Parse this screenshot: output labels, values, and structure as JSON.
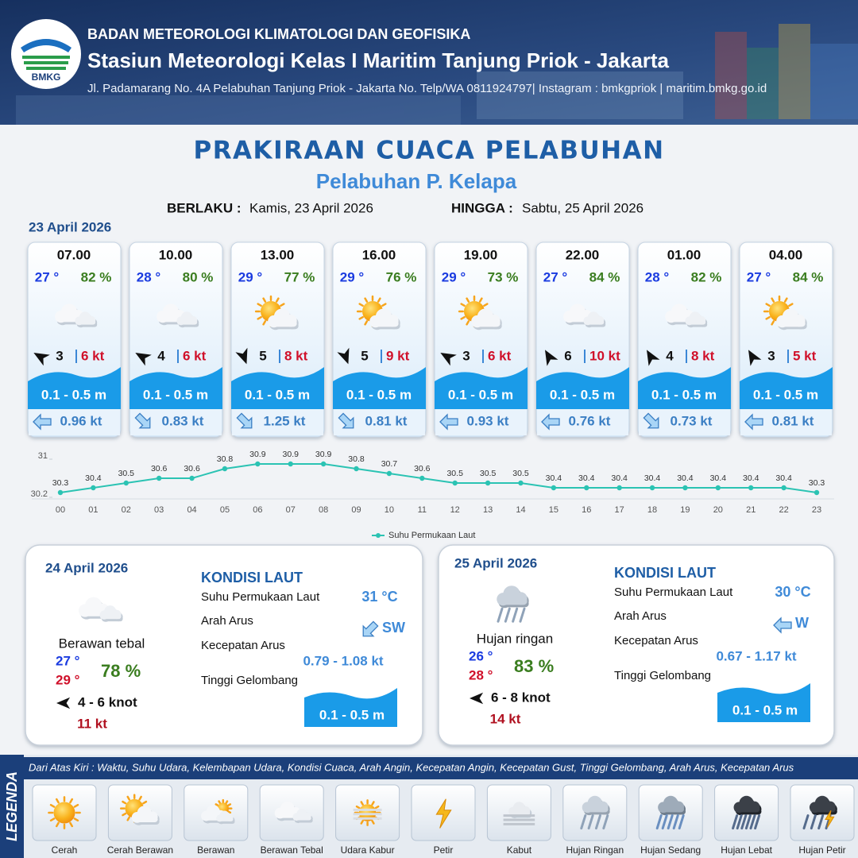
{
  "header": {
    "logo_text": "BMKG",
    "agency": "BADAN METEOROLOGI KLIMATOLOGI DAN GEOFISIKA",
    "station": "Stasiun Meteorologi Kelas I Maritim Tanjung Priok - Jakarta",
    "address": "Jl. Padamarang No. 4A Pelabuhan Tanjung Priok - Jakarta No. Telp/WA 0811924797| Instagram : bmkgpriok | maritim.bmkg.go.id"
  },
  "title": "PRAKIRAAN CUACA PELABUHAN",
  "subtitle": "Pelabuhan P. Kelapa",
  "validity": {
    "from_label": "BERLAKU :",
    "from": "Kamis, 23 April 2026",
    "to_label": "HINGGA :",
    "to": "Sabtu, 25 April 2026"
  },
  "today": {
    "date": "23 April 2026",
    "forecasts": [
      {
        "time": "07.00",
        "temperature": "27 °",
        "humidity": "82 %",
        "wind_speed": "3",
        "gust": "6 kt",
        "wave": "0.1 - 0.5 m",
        "current": "0.96 kt"
      },
      {
        "time": "10.00",
        "temperature": "28 °",
        "humidity": "80 %",
        "wind_speed": "4",
        "gust": "6 kt",
        "wave": "0.1 - 0.5 m",
        "current": "0.83 kt"
      },
      {
        "time": "13.00",
        "temperature": "29 °",
        "humidity": "77 %",
        "wind_speed": "5",
        "gust": "8 kt",
        "wave": "0.1 - 0.5 m",
        "current": "1.25 kt"
      },
      {
        "time": "16.00",
        "temperature": "29 °",
        "humidity": "76 %",
        "wind_speed": "5",
        "gust": "9 kt",
        "wave": "0.1 - 0.5 m",
        "current": "0.81 kt"
      },
      {
        "time": "19.00",
        "temperature": "29 °",
        "humidity": "73 %",
        "wind_speed": "3",
        "gust": "6 kt",
        "wave": "0.1 - 0.5 m",
        "current": "0.93 kt"
      },
      {
        "time": "22.00",
        "temperature": "27 °",
        "humidity": "84 %",
        "wind_speed": "6",
        "gust": "10 kt",
        "wave": "0.1 - 0.5 m",
        "current": "0.76 kt"
      },
      {
        "time": "01.00",
        "temperature": "28 °",
        "humidity": "82 %",
        "wind_speed": "4",
        "gust": "8 kt",
        "wave": "0.1 - 0.5 m",
        "current": "0.73 kt"
      },
      {
        "time": "04.00",
        "temperature": "27 °",
        "humidity": "84 %",
        "wind_speed": "3",
        "gust": "5 kt",
        "wave": "0.1 - 0.5 m",
        "current": "0.81 kt"
      }
    ]
  },
  "chart_data": {
    "type": "line",
    "categories": [
      "00",
      "01",
      "02",
      "03",
      "04",
      "05",
      "06",
      "07",
      "08",
      "09",
      "10",
      "11",
      "12",
      "13",
      "14",
      "15",
      "16",
      "17",
      "18",
      "19",
      "20",
      "21",
      "22",
      "23"
    ],
    "series": [
      {
        "name": "Suhu Permukaan Laut",
        "color": "#2bc3b3",
        "values": [
          30.3,
          30.4,
          30.5,
          30.6,
          30.6,
          30.8,
          30.9,
          30.9,
          30.9,
          30.8,
          30.7,
          30.6,
          30.5,
          30.5,
          30.5,
          30.4,
          30.4,
          30.4,
          30.4,
          30.4,
          30.4,
          30.4,
          30.4,
          30.3
        ]
      }
    ],
    "ylim": [
      30.2,
      31
    ],
    "yticks": [
      30.2,
      31
    ],
    "legend": "bottom"
  },
  "outlook": [
    {
      "date": "24 April 2026",
      "condition": "Berawan tebal",
      "temp_min": "27 °",
      "temp_max": "29 °",
      "humidity": "78 %",
      "wind": "4  - 6 knot",
      "gust": "11 kt",
      "sea": {
        "title": "KONDISI LAUT",
        "rows": [
          {
            "label": "Suhu Permukaan Laut",
            "value": "31 °C"
          },
          {
            "label": "Arah Arus",
            "value": "SW"
          },
          {
            "label": "Kecepatan Arus",
            "value": "0.79  - 1.08 kt"
          },
          {
            "label": "Tinggi Gelombang",
            "value": "0.1 - 0.5 m"
          }
        ]
      }
    },
    {
      "date": "25 April 2026",
      "condition": "Hujan ringan",
      "temp_min": "26 °",
      "temp_max": "28 °",
      "humidity": "83 %",
      "wind": "6 - 8 knot",
      "gust": "14 kt",
      "sea": {
        "title": "KONDISI LAUT",
        "rows": [
          {
            "label": "Suhu Permukaan Laut",
            "value": "30 °C"
          },
          {
            "label": "Arah Arus",
            "value": "W"
          },
          {
            "label": "Kecepatan Arus",
            "value": "0.67 - 1.17 kt"
          },
          {
            "label": "Tinggi Gelombang",
            "value": "0.1 - 0.5 m"
          }
        ]
      }
    }
  ],
  "legend": {
    "title": "LEGENDA",
    "description": "Dari Atas Kiri : Waktu, Suhu Udara, Kelembapan Udara, Kondisi Cuaca, Arah Angin, Kecepatan Angin, Kecepatan Gust, Tinggi Gelombang, Arah Arus, Kecepatan Arus",
    "items": [
      "Cerah",
      "Cerah Berawan",
      "Berawan",
      "Berawan Tebal",
      "Udara Kabur",
      "Petir",
      "Kabut",
      "Hujan Ringan",
      "Hujan Sedang",
      "Hujan Lebat",
      "Hujan Petir"
    ]
  }
}
